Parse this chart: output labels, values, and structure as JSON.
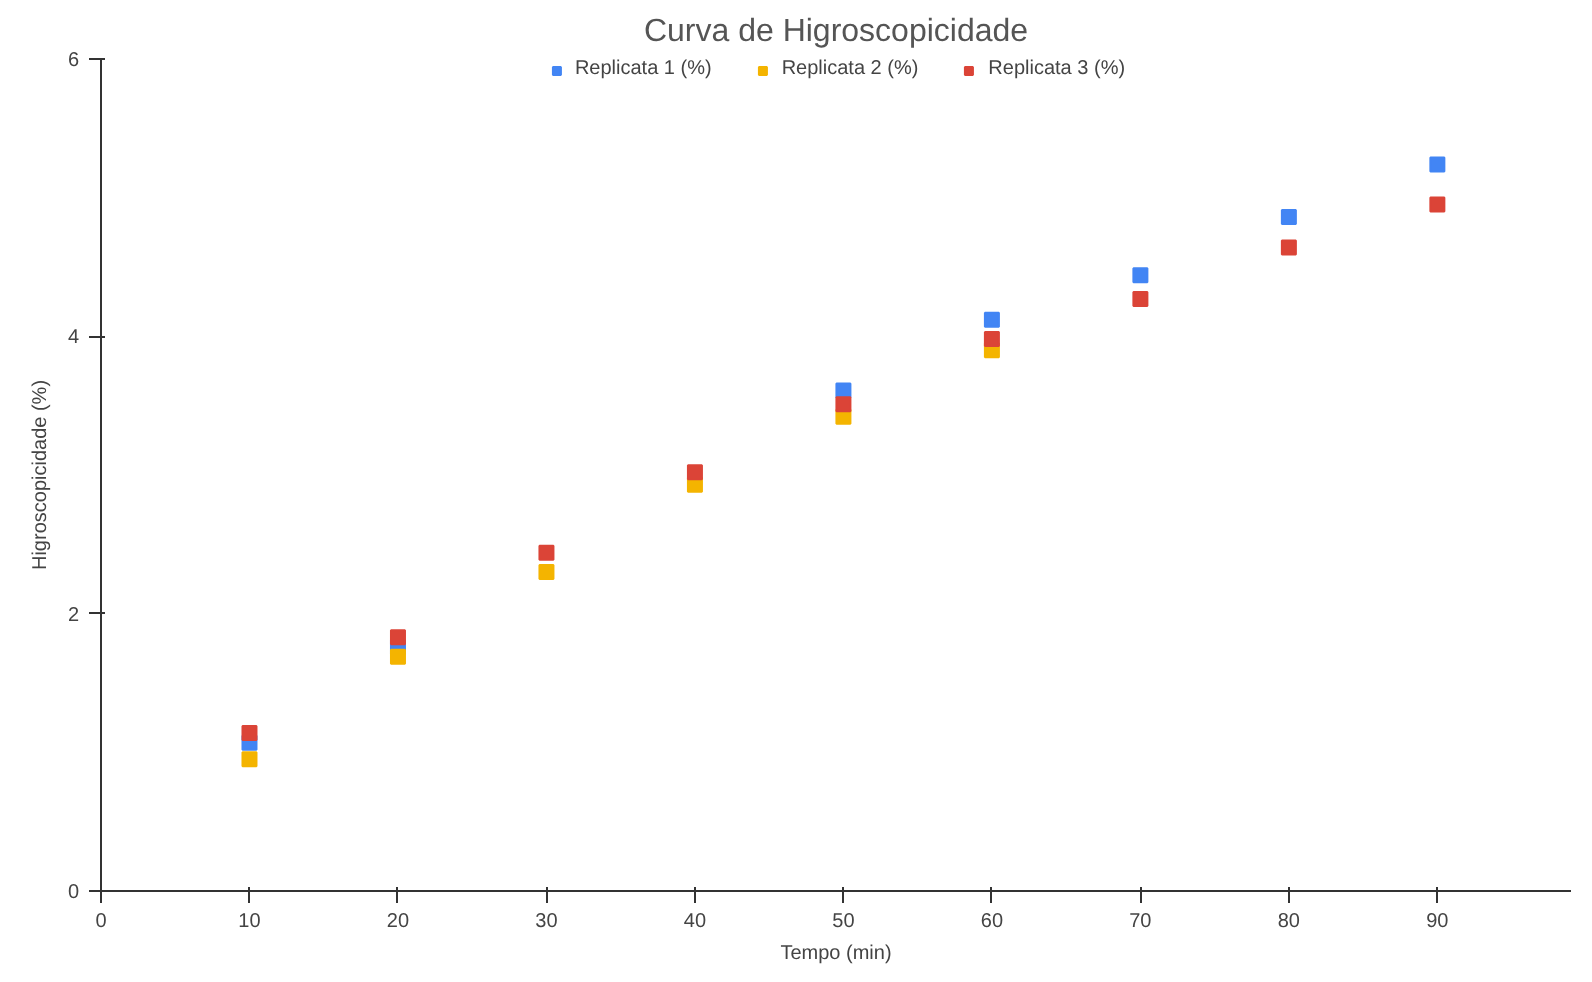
{
  "chart_data": {
    "type": "scatter",
    "title": "Curva de Higroscopicidade",
    "xlabel": "Tempo (min)",
    "ylabel": "Higroscopicidade (%)",
    "x": [
      10,
      20,
      30,
      40,
      50,
      60,
      70,
      80,
      90
    ],
    "series": [
      {
        "name": "Replicata 1 (%)",
        "color": "#4285f4",
        "values": [
          1.07,
          1.76,
          null,
          null,
          3.61,
          4.12,
          4.44,
          4.86,
          5.24
        ]
      },
      {
        "name": "Replicata 2 (%)",
        "color": "#f4b400",
        "values": [
          0.95,
          1.69,
          2.3,
          2.93,
          3.42,
          3.9,
          null,
          null,
          null
        ]
      },
      {
        "name": "Replicata 3 (%)",
        "color": "#db4437",
        "values": [
          1.14,
          1.83,
          2.44,
          3.02,
          3.51,
          3.98,
          4.27,
          4.64,
          4.95
        ]
      }
    ],
    "xlim": [
      0,
      99
    ],
    "xticks": [
      0,
      10,
      20,
      30,
      40,
      50,
      60,
      70,
      80,
      90
    ],
    "ylim": [
      0,
      6
    ],
    "yticks": [
      0,
      2,
      4,
      6
    ],
    "grid": false,
    "legend": "top",
    "marker": "square"
  }
}
